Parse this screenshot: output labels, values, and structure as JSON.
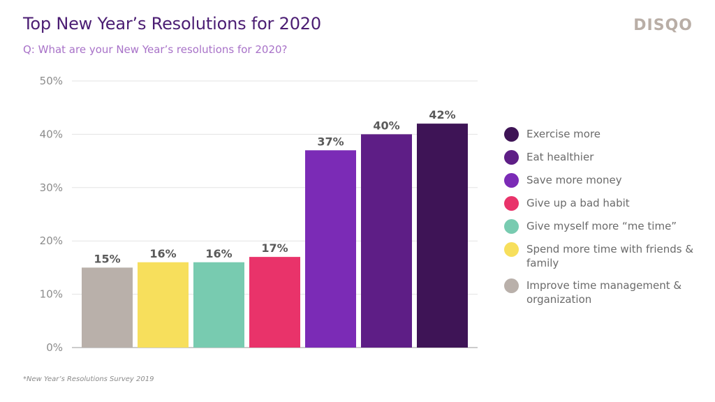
{
  "header": {
    "title": "Top New Year’s Resolutions for 2020",
    "subtitle": "Q: What are your New Year’s resolutions for 2020?",
    "logo": "DISQO"
  },
  "footnote": "*New Year’s Resolutions Survey 2019",
  "chart_data": {
    "type": "bar",
    "categories": [
      "Improve time management & organization",
      "Spend more time with friends & family",
      "Give myself more “me time”",
      "Give up a bad habit",
      "Save more money",
      "Eat healthier",
      "Exercise more"
    ],
    "values": [
      15,
      16,
      16,
      17,
      37,
      40,
      42
    ],
    "data_labels": [
      "15%",
      "16%",
      "16%",
      "17%",
      "37%",
      "40%",
      "42%"
    ],
    "colors": [
      "#b9b0aa",
      "#f7df5c",
      "#78cbb0",
      "#e9336a",
      "#7b2bb6",
      "#5e1e86",
      "#3e1456"
    ],
    "yticks": [
      "0%",
      "10%",
      "20%",
      "30%",
      "40%",
      "50%"
    ],
    "ylim": [
      0,
      50
    ],
    "grid": true,
    "legend_position": "right"
  },
  "legend": [
    {
      "label": "Exercise more",
      "color": "#3e1456"
    },
    {
      "label": "Eat healthier",
      "color": "#5e1e86"
    },
    {
      "label": "Save more money",
      "color": "#7b2bb6"
    },
    {
      "label": "Give up a bad habit",
      "color": "#e9336a"
    },
    {
      "label": "Give myself more “me time”",
      "color": "#78cbb0"
    },
    {
      "label": "Spend more time with friends & family",
      "color": "#f7df5c"
    },
    {
      "label": "Improve time management & organization",
      "color": "#b9b0aa"
    }
  ]
}
